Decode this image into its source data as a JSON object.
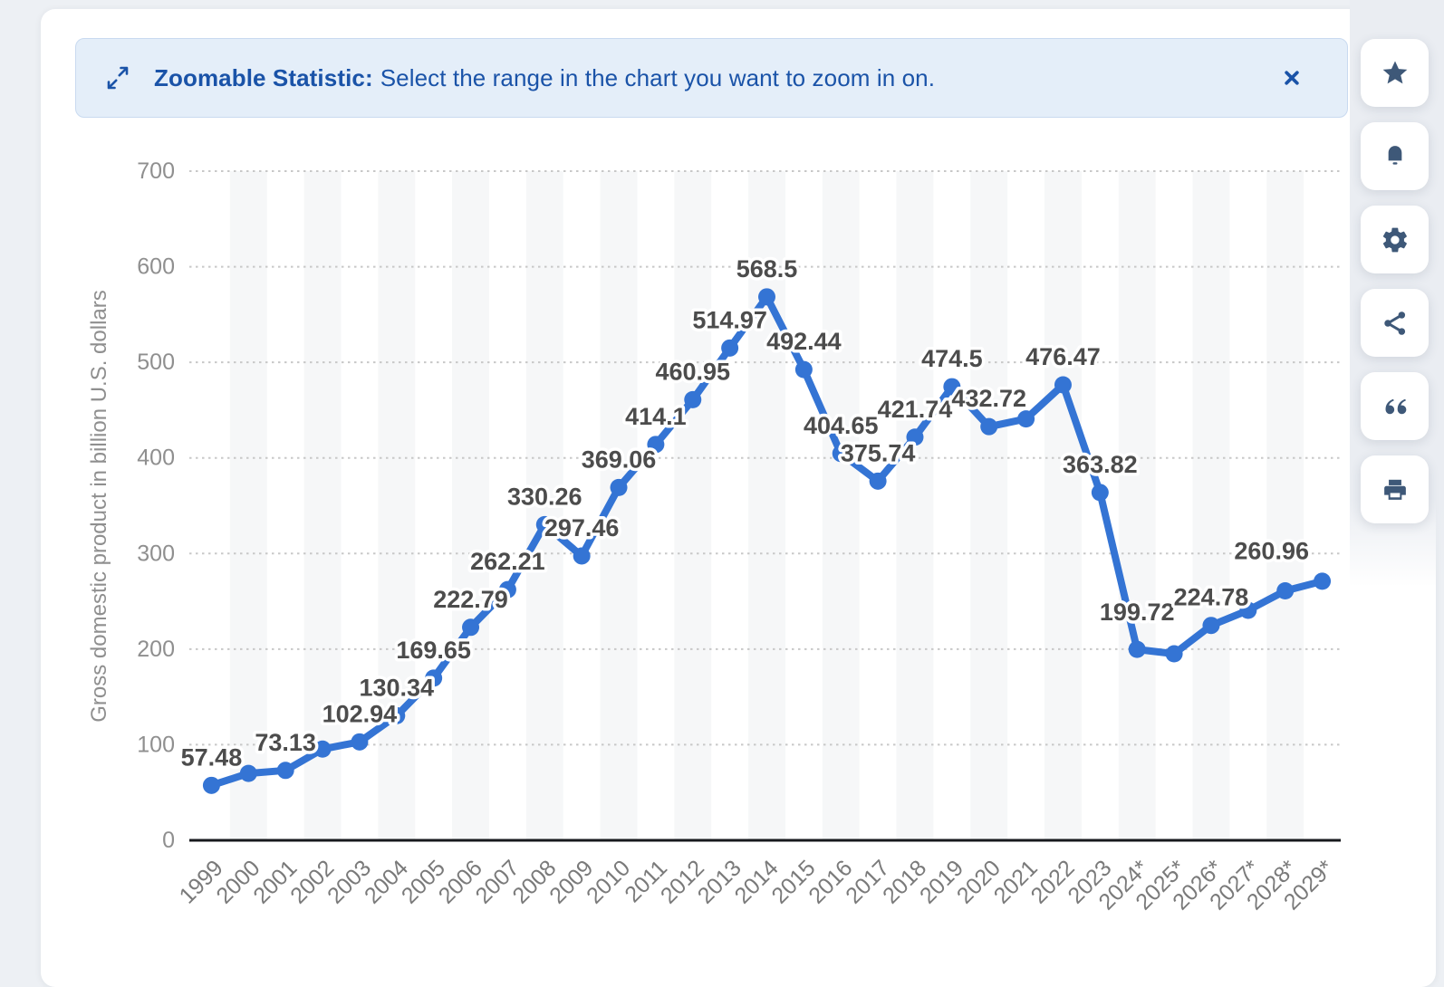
{
  "banner": {
    "bold_label": "Zoomable Statistic:",
    "message": "Select the range in the chart you want to zoom in on."
  },
  "icons": {
    "banner_left": "expand-diagonal-arrows",
    "banner_right": "close-x",
    "toolbar": [
      "star",
      "bell",
      "gear",
      "share",
      "quote",
      "print"
    ]
  },
  "colors": {
    "line": "#3474d4",
    "banner_bg": "#e4eef9",
    "banner_text": "#1a53a8",
    "toolbar_icon": "#3e5878",
    "data_label": "#4c4c4c",
    "axis_label": "#8f8f8f",
    "x_label": "#7a7a7a",
    "stripe": "#f6f7f8",
    "gridline": "#c8c8c8",
    "axis_line": "#17191d",
    "page_bg": "#edf0f4",
    "card_bg": "#ffffff"
  },
  "chart_data": {
    "type": "line",
    "title": "",
    "xlabel": "",
    "ylabel": "Gross domestic product in billion U.S. dollars",
    "ylim": [
      0,
      700
    ],
    "yticks": [
      0,
      100,
      200,
      300,
      400,
      500,
      600,
      700
    ],
    "grid": "horizontal-dotted",
    "legend": "none",
    "categories": [
      "1999",
      "2000",
      "2001",
      "2002",
      "2003",
      "2004",
      "2005",
      "2006",
      "2007",
      "2008",
      "2009",
      "2010",
      "2011",
      "2012",
      "2013",
      "2014",
      "2015",
      "2016",
      "2017",
      "2018",
      "2019",
      "2020",
      "2021",
      "2022",
      "2023",
      "2024*",
      "2025*",
      "2026*",
      "2027*",
      "2028*",
      "2029*"
    ],
    "values": [
      57.48,
      70,
      73.13,
      95.4,
      102.94,
      130.34,
      169.65,
      222.79,
      262.21,
      330.26,
      297.46,
      369.06,
      414.1,
      460.95,
      514.97,
      568.5,
      492.44,
      404.65,
      375.74,
      421.74,
      474.5,
      432.72,
      440.8,
      476.47,
      363.82,
      199.72,
      195.1,
      224.78,
      240.6,
      260.96,
      271
    ],
    "data_labels": [
      "57.48",
      null,
      "73.13",
      null,
      "102.94",
      "130.34",
      "169.65",
      "222.79",
      "262.21",
      "330.26",
      "297.46",
      "369.06",
      "414.1",
      "460.95",
      "514.97",
      "568.5",
      "492.44",
      "404.65",
      "375.74",
      "421.74",
      "474.5",
      "432.72",
      null,
      "476.47",
      "363.82",
      "199.72",
      null,
      "224.78",
      null,
      "260.96",
      null
    ]
  }
}
